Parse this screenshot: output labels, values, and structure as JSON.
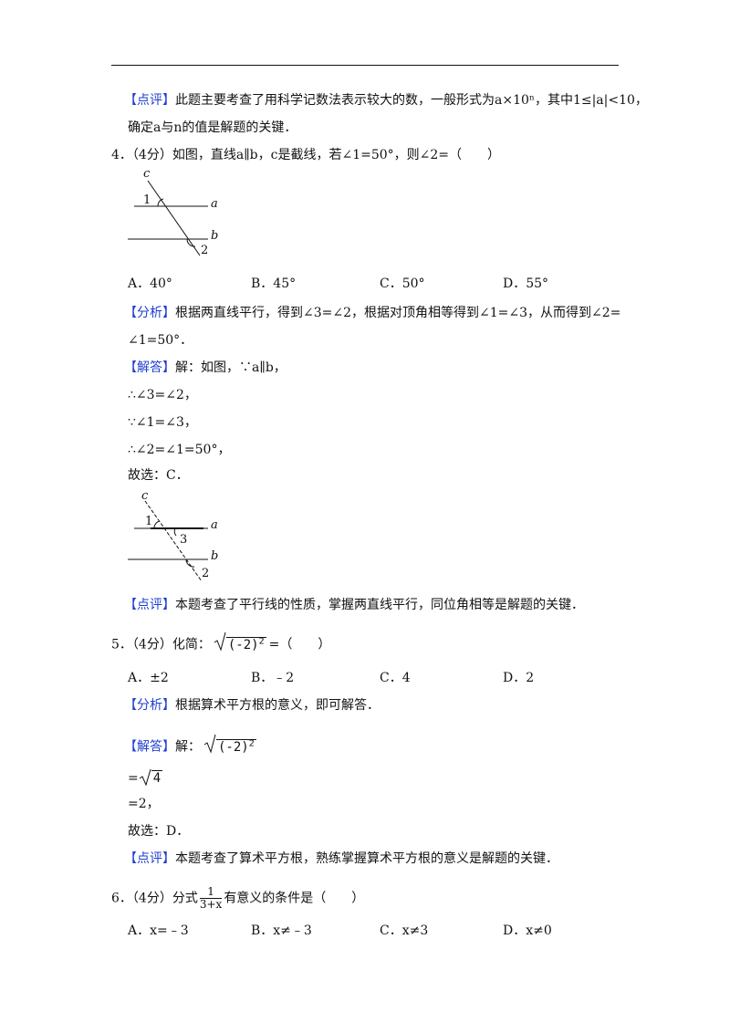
{
  "previous_review": {
    "tag": "【点评】",
    "lines": [
      "此题主要考查了用科学记数法表示较大的数，一般形式为a×10ⁿ，其中1≤|a|<10，",
      "确定a与n的值是解题的关键．"
    ]
  },
  "questions": [
    {
      "number": "4．",
      "score": "（4分）",
      "stem": "如图，直线a∥b，c是截线，若∠1=50°，则∠2=（　　）",
      "figure": {
        "labels": [
          "c",
          "1",
          "a",
          "b",
          "2"
        ]
      },
      "options": [
        "A．40°",
        "B．45°",
        "C．50°",
        "D．55°"
      ],
      "analysis": {
        "tag": "【分析】",
        "lines": [
          "根据两直线平行，得到∠3=∠2，根据对顶角相等得到∠1=∠3，从而得到∠2=",
          "∠1=50°．"
        ]
      },
      "solution": {
        "tag": "【解答】",
        "lines": [
          "解：如图，∵a∥b，",
          "∴∠3=∠2，",
          "∵∠1=∠3，",
          "∴∠2=∠1=50°，",
          "故选：C．"
        ]
      },
      "solution_figure": {
        "labels": [
          "c",
          "1",
          "a",
          "3",
          "b",
          "2"
        ]
      },
      "review": {
        "tag": "【点评】",
        "text": "本题考查了平行线的性质，掌握两直线平行，同位角相等是解题的关键．"
      }
    },
    {
      "number": "5．",
      "score": "（4分）",
      "stem": {
        "before": "化简：",
        "radicand": "(-2)",
        "exponent": "2",
        "after": "=（　　）"
      },
      "options": [
        "A．±2",
        "B．﹣2",
        "C．4",
        "D．2"
      ],
      "analysis": {
        "tag": "【分析】",
        "lines": [
          "根据算术平方根的意义，即可解答．"
        ]
      },
      "solution": {
        "tag": "【解答】",
        "intro": "解：",
        "radicand": "(-2)",
        "exponent": "2",
        "step": "=",
        "step_radicand": "4",
        "lines": [
          "=2，",
          "故选：D．"
        ]
      },
      "review": {
        "tag": "【点评】",
        "text": "本题考查了算术平方根，熟练掌握算术平方根的意义是解题的关键．"
      }
    },
    {
      "number": "6．",
      "score": "（4分）",
      "stem": {
        "before": "分式",
        "numerator": "1",
        "denominator": "3+x",
        "after": "有意义的条件是（　　）"
      },
      "options": [
        "A．x=﹣3",
        "B．x≠﹣3",
        "C．x≠3",
        "D．x≠0"
      ]
    }
  ]
}
